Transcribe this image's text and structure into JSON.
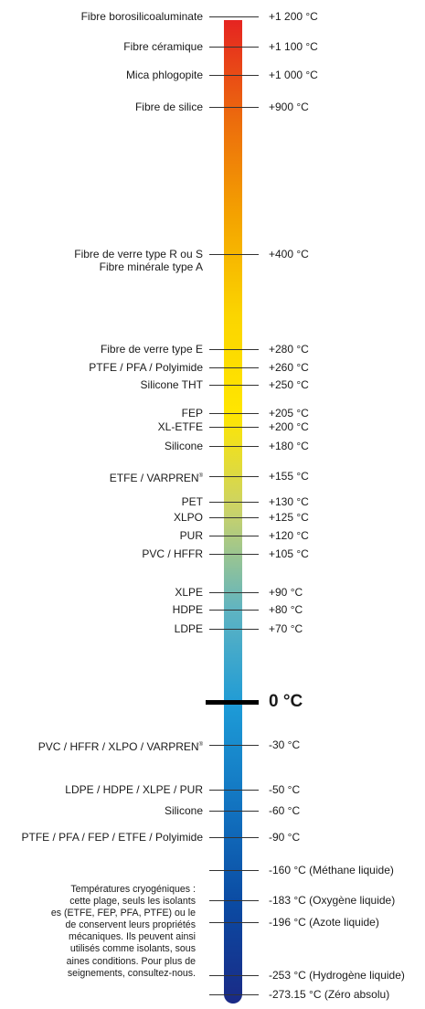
{
  "scale": {
    "gradient": [
      "#e52421",
      "#ec6b0d",
      "#f4a300",
      "#fbd500",
      "#ffe600",
      "#c9d26a",
      "#5fb4c2",
      "#1d9ad6",
      "#1273c0",
      "#0b4aa2",
      "#1a2a86"
    ],
    "zero_label": "0 °C"
  },
  "rows": [
    {
      "material": "Fibre borosilicoaluminate",
      "temp": "+1 200 °C",
      "value": 1200
    },
    {
      "material": "Fibre céramique",
      "temp": "+1 100 °C",
      "value": 1100
    },
    {
      "material": "Mica phlogopite",
      "temp": "+1 000 °C",
      "value": 1000
    },
    {
      "material": "Fibre de silice",
      "temp": "+900 °C",
      "value": 900
    },
    {
      "material": "Fibre de verre  type R ou S",
      "material2": "Fibre minérale type A",
      "temp": "+400 °C",
      "value": 400
    },
    {
      "material": "Fibre de verre type E",
      "temp": "+280 °C",
      "value": 280
    },
    {
      "material": "PTFE / PFA / Polyimide",
      "temp": "+260 °C",
      "value": 260
    },
    {
      "material": "Silicone THT",
      "temp": "+250 °C",
      "value": 250
    },
    {
      "material": "FEP",
      "temp": "+205 °C",
      "value": 205
    },
    {
      "material": "XL-ETFE",
      "temp": "+200 °C",
      "value": 200
    },
    {
      "material": "Silicone",
      "temp": "+180 °C",
      "value": 180
    },
    {
      "material": "ETFE / VARPREN",
      "sup": "®",
      "temp": "+155 °C",
      "value": 155
    },
    {
      "material": "PET",
      "temp": "+130 °C",
      "value": 130
    },
    {
      "material": "XLPO",
      "temp": "+125 °C",
      "value": 125
    },
    {
      "material": "PUR",
      "temp": "+120 °C",
      "value": 120
    },
    {
      "material": "PVC / HFFR",
      "temp": "+105 °C",
      "value": 105
    },
    {
      "material": "XLPE",
      "temp": "+90 °C",
      "value": 90
    },
    {
      "material": "HDPE",
      "temp": "+80 °C",
      "value": 80
    },
    {
      "material": "LDPE",
      "temp": "+70 °C",
      "value": 70
    },
    {
      "material": "PVC / HFFR / XLPO / VARPREN",
      "sup": "®",
      "temp": "-30 °C",
      "value": -30
    },
    {
      "material": "LDPE / HDPE / XLPE / PUR",
      "temp": "-50 °C",
      "value": -50
    },
    {
      "material": "Silicone",
      "temp": "-60 °C",
      "value": -60
    },
    {
      "material": "PTFE / PFA / FEP / ETFE / Polyimide",
      "temp": "-90 °C",
      "value": -90
    },
    {
      "material": "",
      "temp": "-160 °C (Méthane liquide)",
      "value": -160
    },
    {
      "material": "",
      "temp": "-183 °C (Oxygène liquide)",
      "value": -183
    },
    {
      "material": "",
      "temp": "-196 °C (Azote liquide)",
      "value": -196
    },
    {
      "material": "",
      "temp": "-253 °C (Hydrogène liquide)",
      "value": -253
    },
    {
      "material": "",
      "temp": "-273.15 °C (Zéro absolu)",
      "value": -273.15
    }
  ],
  "cryogenic_note": [
    "Températures cryogéniques :",
    "cette plage, seuls les isolants",
    "es (ETFE, FEP, PFA, PTFE) ou le",
    "de conservent leurs propriétés",
    "mécaniques. Ils peuvent ainsi",
    "utilisés comme isolants, sous",
    "aines conditions. Pour plus de",
    "seignements, consultez-nous."
  ]
}
